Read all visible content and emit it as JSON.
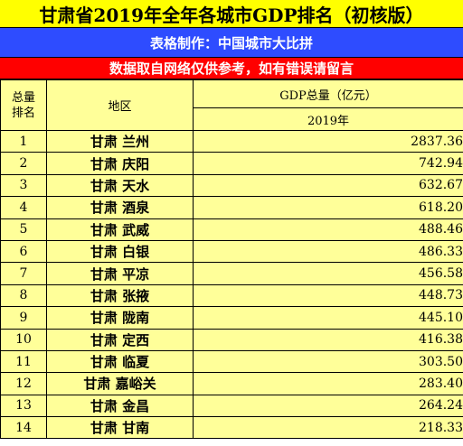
{
  "title": "甘肃省2019年全年各城市GDP排名（初核版）",
  "maker": "表格制作：中国城市大比拼",
  "note": "数据取自网络仅供参考，如有错误请留言",
  "headers": {
    "rank_line1": "总量",
    "rank_line2": "排名",
    "region": "地区",
    "gdp": "GDP总量（亿元）",
    "year": "2019年"
  },
  "colors": {
    "title_bg": "#ffff00",
    "maker_bg": "#2e4cff",
    "note_bg": "#ff0000",
    "table_bg": "#ffff99"
  },
  "rows": [
    {
      "rank": "1",
      "province": "甘肃",
      "city": "兰州",
      "gdp": "2837.36"
    },
    {
      "rank": "2",
      "province": "甘肃",
      "city": "庆阳",
      "gdp": "742.94"
    },
    {
      "rank": "3",
      "province": "甘肃",
      "city": "天水",
      "gdp": "632.67"
    },
    {
      "rank": "4",
      "province": "甘肃",
      "city": "酒泉",
      "gdp": "618.20"
    },
    {
      "rank": "5",
      "province": "甘肃",
      "city": "武威",
      "gdp": "488.46"
    },
    {
      "rank": "6",
      "province": "甘肃",
      "city": "白银",
      "gdp": "486.33"
    },
    {
      "rank": "7",
      "province": "甘肃",
      "city": "平凉",
      "gdp": "456.58"
    },
    {
      "rank": "8",
      "province": "甘肃",
      "city": "张掖",
      "gdp": "448.73"
    },
    {
      "rank": "9",
      "province": "甘肃",
      "city": "陇南",
      "gdp": "445.10"
    },
    {
      "rank": "10",
      "province": "甘肃",
      "city": "定西",
      "gdp": "416.38"
    },
    {
      "rank": "11",
      "province": "甘肃",
      "city": "临夏",
      "gdp": "303.50"
    },
    {
      "rank": "12",
      "province": "甘肃",
      "city": "嘉峪关",
      "gdp": "283.40"
    },
    {
      "rank": "13",
      "province": "甘肃",
      "city": "金昌",
      "gdp": "264.24"
    },
    {
      "rank": "14",
      "province": "甘肃",
      "city": "甘南",
      "gdp": "218.33"
    }
  ]
}
